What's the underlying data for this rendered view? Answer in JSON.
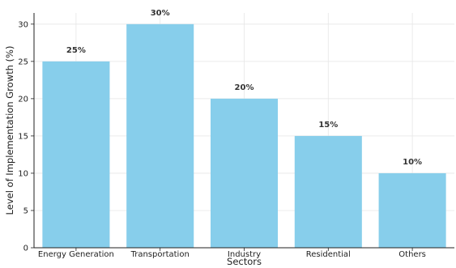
{
  "chart_data": {
    "type": "bar",
    "title": "",
    "xlabel": "Sectors",
    "ylabel": "Level of Implementation Growth (%)",
    "categories": [
      "Energy Generation",
      "Transportation",
      "Industry",
      "Residential",
      "Others"
    ],
    "values": [
      25,
      30,
      20,
      15,
      10
    ],
    "data_labels": [
      "25%",
      "30%",
      "20%",
      "15%",
      "10%"
    ],
    "ylim": [
      0,
      31.5
    ],
    "yticks": [
      0,
      5,
      10,
      15,
      20,
      25,
      30
    ],
    "grid": true,
    "legend": "none",
    "bar_color": "#87CEEB",
    "grid_color": "#e6e6e6"
  }
}
